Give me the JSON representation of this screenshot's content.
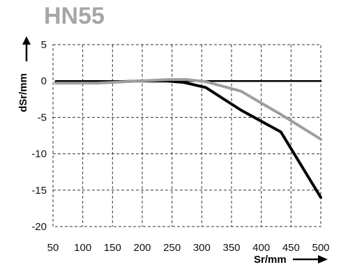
{
  "chart_data": {
    "type": "line",
    "title": "HN55",
    "xlabel": "Sr/mm",
    "ylabel": "dSr/mm",
    "xlim": [
      64,
      460
    ],
    "ylim": [
      -20,
      5
    ],
    "xticks": [
      50,
      100,
      150,
      200,
      250,
      300,
      350,
      400,
      450,
      500
    ],
    "yticks": [
      5,
      0,
      -5,
      -10,
      -15,
      -20
    ],
    "grid": true,
    "grid_style": "dashed",
    "zero_line": true,
    "legend": "none",
    "series": [
      {
        "color": "#000000",
        "points": [
          {
            "x": 68,
            "y": 0.0
          },
          {
            "x": 100,
            "y": 0.0
          },
          {
            "x": 150,
            "y": 0.0
          },
          {
            "x": 200,
            "y": 0.0
          },
          {
            "x": 250,
            "y": 0.0
          },
          {
            "x": 300,
            "y": 0.0
          },
          {
            "x": 350,
            "y": 0.0
          },
          {
            "x": 400,
            "y": 0.0
          },
          {
            "x": 460,
            "y": 0.0
          }
        ]
      },
      {
        "color": "#000000",
        "points": [
          {
            "x": 68,
            "y": -0.2
          },
          {
            "x": 134,
            "y": -0.2
          },
          {
            "x": 190,
            "y": 0.0
          },
          {
            "x": 234,
            "y": 0.0
          },
          {
            "x": 258,
            "y": -0.2
          },
          {
            "x": 290,
            "y": -0.9
          },
          {
            "x": 342,
            "y": -4.0
          },
          {
            "x": 401,
            "y": -7.0
          },
          {
            "x": 460,
            "y": -16.0
          }
        ]
      },
      {
        "color": "#9e9e9e",
        "points": [
          {
            "x": 68,
            "y": -0.3
          },
          {
            "x": 130,
            "y": -0.3
          },
          {
            "x": 190,
            "y": 0.0
          },
          {
            "x": 235,
            "y": 0.2
          },
          {
            "x": 262,
            "y": 0.2
          },
          {
            "x": 290,
            "y": -0.1
          },
          {
            "x": 342,
            "y": -1.4
          },
          {
            "x": 401,
            "y": -4.6
          },
          {
            "x": 460,
            "y": -8.0
          }
        ]
      }
    ]
  }
}
